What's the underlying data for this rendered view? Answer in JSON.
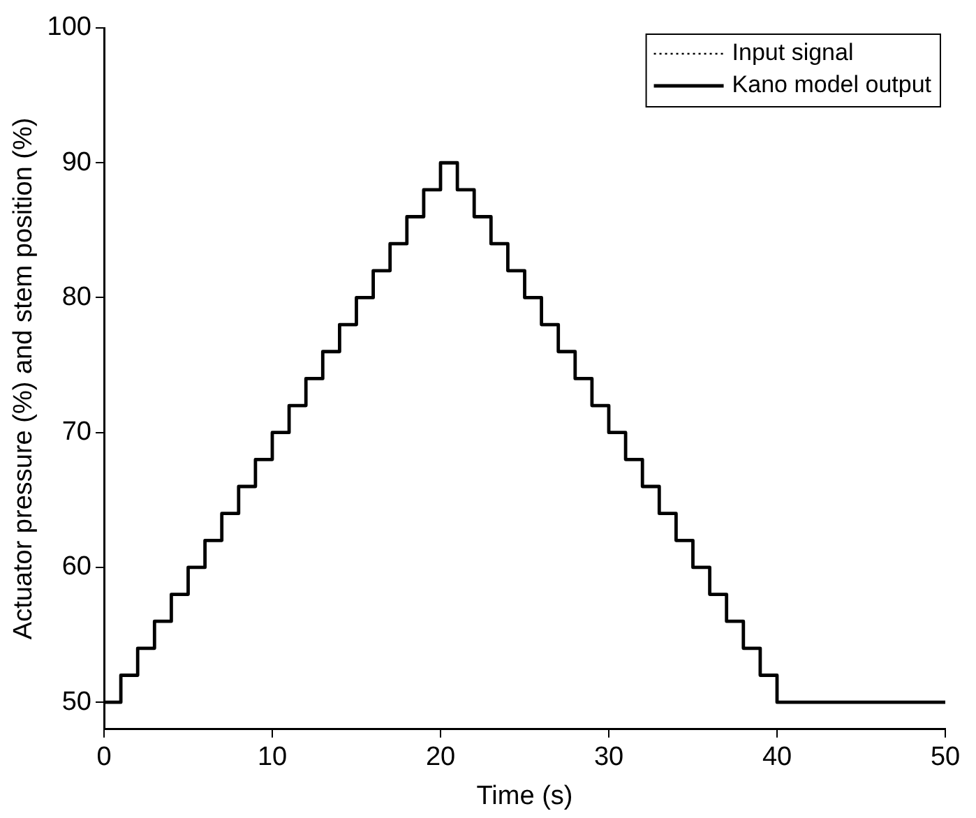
{
  "chart_data": {
    "type": "step",
    "xlabel": "Time (s)",
    "ylabel": "Actuator pressure (%) and stem position (%)",
    "x": [
      0,
      1,
      2,
      3,
      4,
      5,
      6,
      7,
      8,
      9,
      10,
      11,
      12,
      13,
      14,
      15,
      16,
      17,
      18,
      19,
      20,
      21,
      22,
      23,
      24,
      25,
      26,
      27,
      28,
      29,
      30,
      31,
      32,
      33,
      34,
      35,
      36,
      37,
      38,
      39,
      40,
      41,
      42,
      43,
      44,
      45,
      46,
      47,
      48,
      49,
      50
    ],
    "series": [
      {
        "name": "Kano model output",
        "color": "#000000",
        "line_style": "solid",
        "values": [
          50,
          52,
          54,
          56,
          58,
          60,
          62,
          64,
          66,
          68,
          70,
          72,
          74,
          76,
          78,
          80,
          82,
          84,
          86,
          88,
          90,
          88,
          86,
          84,
          82,
          80,
          78,
          76,
          74,
          72,
          70,
          68,
          66,
          64,
          62,
          60,
          58,
          56,
          54,
          52,
          50,
          50,
          50,
          50,
          50,
          50,
          50,
          50,
          50,
          50,
          50
        ]
      },
      {
        "name": "Input signal",
        "color": "#000000",
        "line_style": "dotted",
        "values": [
          null,
          null,
          null,
          null,
          null,
          null,
          null,
          null,
          null,
          null,
          null,
          null,
          null,
          null,
          null,
          null,
          null,
          null,
          null,
          null,
          null,
          null,
          null,
          null,
          null,
          null,
          null,
          null,
          null,
          null,
          null,
          null,
          null,
          null,
          null,
          null,
          null,
          null,
          null,
          null,
          null,
          null,
          null,
          null,
          null,
          null,
          null,
          null,
          null,
          null,
          null
        ]
      }
    ],
    "xlim": [
      0,
      50
    ],
    "xticks": [
      0,
      10,
      20,
      30,
      40,
      50
    ],
    "ylim": [
      48,
      100
    ],
    "yticks": [
      50,
      60,
      70,
      80,
      90,
      100
    ],
    "grid": false,
    "legend": "top right",
    "marker": "none"
  }
}
